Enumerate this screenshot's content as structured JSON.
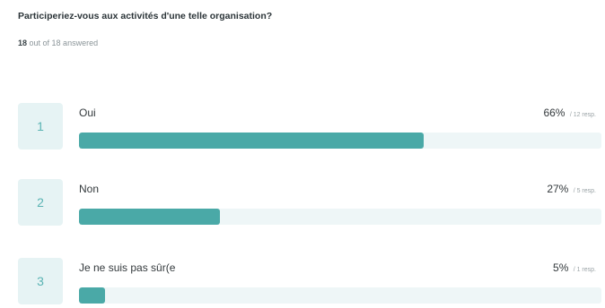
{
  "question": {
    "title": "Participeriez-vous aux activités d'une telle organisation?",
    "answered_count": "18",
    "answered_suffix": "out of 18 answered"
  },
  "options": [
    {
      "index": "1",
      "label": "Oui",
      "percent_text": "66%",
      "responses_text": "/ 12 resp.",
      "fraction": 0.66
    },
    {
      "index": "2",
      "label": "Non",
      "percent_text": "27%",
      "responses_text": "/ 5 resp.",
      "fraction": 0.27
    },
    {
      "index": "3",
      "label": "Je ne suis pas sûr(e",
      "percent_text": "5%",
      "responses_text": "/ 1 resp.",
      "fraction": 0.05
    }
  ],
  "colors": {
    "bar_fill": "#4aa9a7",
    "bar_track": "#eef6f7",
    "index_bg": "#e6f3f4",
    "index_text": "#5ab3b3"
  }
}
